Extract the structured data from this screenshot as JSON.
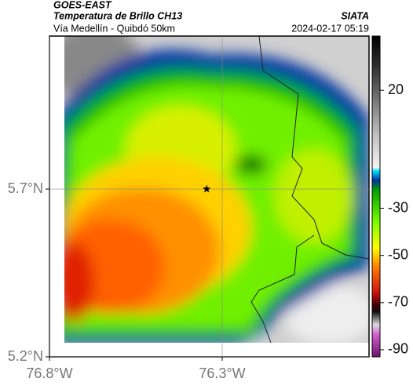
{
  "header": {
    "source": "GOES-EAST",
    "title": "Temperatura de Brillo CH13",
    "agency": "SIATA",
    "subtitle": "Vía Medellín - Quibdó 50km",
    "datetime": "2024-02-17 05:19"
  },
  "map": {
    "lonlim": [
      -76.8,
      -75.875
    ],
    "latlim": [
      5.2,
      6.156
    ],
    "lonticks": [
      {
        "value": -76.8,
        "label": "76.8°W"
      },
      {
        "value": -76.3,
        "label": "76.3°W"
      }
    ],
    "latticks": [
      {
        "value": 5.7,
        "label": "5.7°N"
      },
      {
        "value": 5.2,
        "label": "5.2°N"
      }
    ],
    "marker": {
      "lon": -76.345,
      "lat": 5.7
    }
  },
  "colorbar": {
    "lim": [
      -93,
      43
    ],
    "ticks": [
      20,
      -30,
      -50,
      -70,
      -90
    ]
  }
}
